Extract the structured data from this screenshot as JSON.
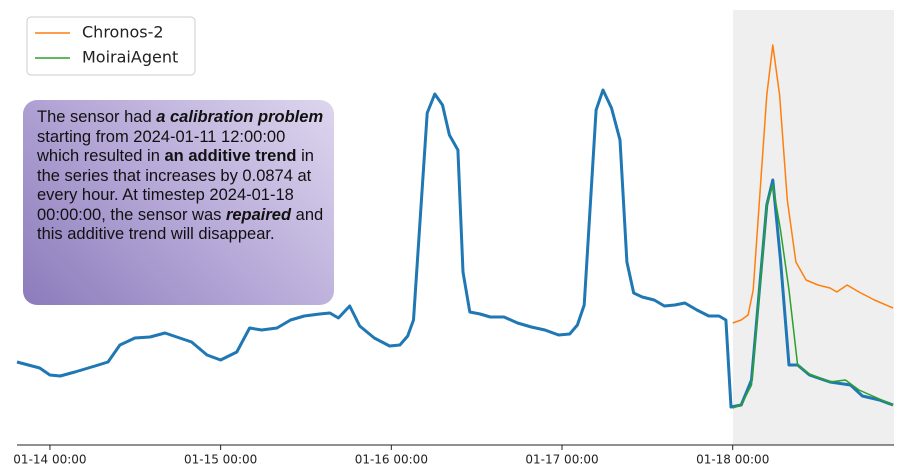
{
  "chart_data": {
    "type": "line",
    "series": [
      {
        "color": "#1f77b4",
        "x": [
          13.807,
          13.94,
          14.0,
          14.06,
          14.146,
          14.264,
          14.34,
          14.41,
          14.498,
          14.586,
          14.674,
          14.76,
          14.83,
          14.92,
          15.0,
          15.095,
          15.17,
          15.24,
          15.33,
          15.41,
          15.49,
          15.58,
          15.64,
          15.69,
          15.756,
          15.815,
          15.9,
          15.99,
          16.05,
          16.096,
          16.13,
          16.21,
          16.255,
          16.3,
          16.34,
          16.39,
          16.42,
          16.46,
          16.52,
          16.58,
          16.66,
          16.74,
          16.82,
          16.9,
          16.98,
          17.045,
          17.09,
          17.13,
          17.2,
          17.24,
          17.29,
          17.34,
          17.38,
          17.42,
          17.47,
          17.54,
          17.6,
          17.66,
          17.72,
          17.79,
          17.86,
          17.92,
          17.96,
          17.99,
          18.05,
          18.11,
          18.2,
          18.235,
          18.28,
          18.33,
          18.38,
          18.45,
          18.57,
          18.69,
          18.76,
          18.86,
          18.94
        ],
        "values": [
          0.68,
          0.62,
          0.55,
          0.54,
          0.58,
          0.64,
          0.68,
          0.85,
          0.92,
          0.93,
          0.97,
          0.92,
          0.88,
          0.75,
          0.7,
          0.78,
          1.02,
          1.0,
          1.02,
          1.1,
          1.14,
          1.16,
          1.17,
          1.12,
          1.24,
          1.04,
          0.92,
          0.84,
          0.85,
          0.94,
          1.1,
          3.17,
          3.36,
          3.25,
          2.95,
          2.8,
          1.58,
          1.18,
          1.16,
          1.13,
          1.13,
          1.07,
          1.03,
          1.0,
          0.95,
          0.96,
          1.05,
          1.25,
          3.2,
          3.4,
          3.22,
          2.9,
          1.68,
          1.37,
          1.33,
          1.3,
          1.24,
          1.25,
          1.27,
          1.2,
          1.14,
          1.14,
          1.1,
          0.23,
          0.25,
          0.5,
          2.25,
          2.5,
          1.7,
          0.65,
          0.65,
          0.55,
          0.48,
          0.45,
          0.34,
          0.3,
          0.25
        ]
      },
      {
        "name": "Chronos-2",
        "color": "#ff7f0e",
        "x": [
          18.0,
          18.05,
          18.09,
          18.12,
          18.2,
          18.235,
          18.275,
          18.32,
          18.37,
          18.43,
          18.5,
          18.57,
          18.61,
          18.67,
          18.74,
          18.83,
          18.94
        ],
        "values": [
          1.07,
          1.1,
          1.15,
          1.4,
          3.35,
          3.85,
          3.35,
          2.3,
          1.68,
          1.5,
          1.45,
          1.42,
          1.38,
          1.45,
          1.38,
          1.3,
          1.22
        ]
      },
      {
        "name": "MoiraiAgent",
        "color": "#2ca02c",
        "x": [
          18.0,
          18.05,
          18.11,
          18.2,
          18.235,
          18.28,
          18.33,
          18.38,
          18.45,
          18.57,
          18.66,
          18.74,
          18.94
        ],
        "values": [
          0.22,
          0.25,
          0.45,
          2.25,
          2.45,
          2.0,
          1.4,
          0.65,
          0.56,
          0.48,
          0.5,
          0.4,
          0.25
        ]
      }
    ],
    "xlim": [
      13.807,
      18.945
    ],
    "xticks": [
      {
        "value": 14,
        "label": "01-14 00:00"
      },
      {
        "value": 15,
        "label": "01-15 00:00"
      },
      {
        "value": 16,
        "label": "01-16 00:00"
      },
      {
        "value": 17,
        "label": "01-17 00:00"
      },
      {
        "value": 18,
        "label": "01-18 00:00"
      }
    ],
    "ylim": [
      0,
      4.2
    ],
    "annotation": [
      {
        "text": "The sensor had ",
        "style": ""
      },
      {
        "text": "a calibration problem",
        "style": "b i"
      },
      {
        "text": " starting from 2024-01-11 12:00:00 which resulted in ",
        "style": ""
      },
      {
        "text": "an additive trend",
        "style": "b"
      },
      {
        "text": " in the series that increases by 0.0874 at every hour. At timestep 2024-01-18 00:00:00, the sensor was ",
        "style": ""
      },
      {
        "text": "repaired",
        "style": "b i"
      },
      {
        "text": " and this additive trend will disappear.",
        "style": ""
      }
    ]
  }
}
